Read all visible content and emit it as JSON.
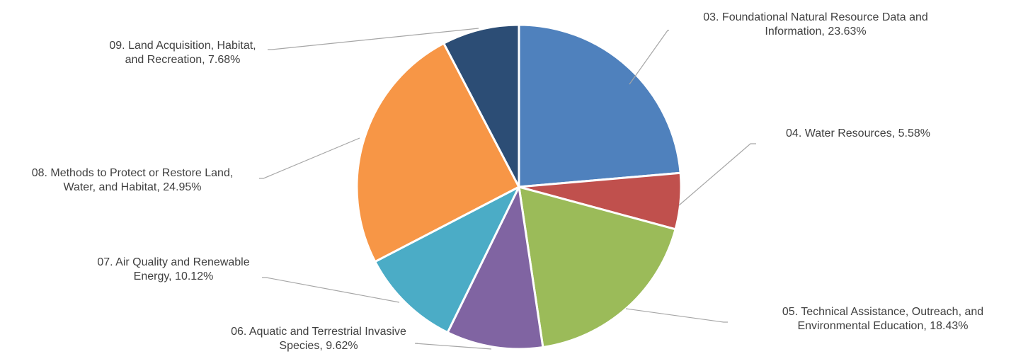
{
  "chart_data": {
    "type": "pie",
    "title": "",
    "legend": "none",
    "data_labels": "outside with leader lines",
    "slices": [
      {
        "label": "03. Foundational Natural Resource Data and Information",
        "display_label": [
          "03. Foundational Natural Resource Data and",
          "Information, 23.63%"
        ],
        "value": 23.63,
        "value_text": "23.63%",
        "color": "#4F81BD"
      },
      {
        "label": "04. Water Resources",
        "display_label": [
          "04. Water Resources, 5.58%"
        ],
        "value": 5.58,
        "value_text": "5.58%",
        "color": "#C0504D"
      },
      {
        "label": "05. Technical Assistance, Outreach, and Environmental Education",
        "display_label": [
          "05. Technical Assistance, Outreach, and",
          "Environmental Education, 18.43%"
        ],
        "value": 18.43,
        "value_text": "18.43%",
        "color": "#9BBB59"
      },
      {
        "label": "06. Aquatic and Terrestrial Invasive Species",
        "display_label": [
          "06. Aquatic and Terrestrial Invasive",
          "Species, 9.62%"
        ],
        "value": 9.62,
        "value_text": "9.62%",
        "color": "#8064A2"
      },
      {
        "label": "07. Air Quality and Renewable Energy",
        "display_label": [
          "07. Air Quality and Renewable",
          "Energy, 10.12%"
        ],
        "value": 10.12,
        "value_text": "10.12%",
        "color": "#4BACC6"
      },
      {
        "label": "08. Methods to Protect or Restore Land, Water, and Habitat",
        "display_label": [
          "08. Methods to Protect or Restore Land,",
          "Water, and Habitat, 24.95%"
        ],
        "value": 24.95,
        "value_text": "24.95%",
        "color": "#F79646"
      },
      {
        "label": "09. Land Acquisition, Habitat, and Recreation",
        "display_label": [
          "09. Land Acquisition, Habitat,",
          "and Recreation, 7.68%"
        ],
        "value": 7.68,
        "value_text": "7.68%",
        "color": "#2C4D75"
      }
    ]
  }
}
